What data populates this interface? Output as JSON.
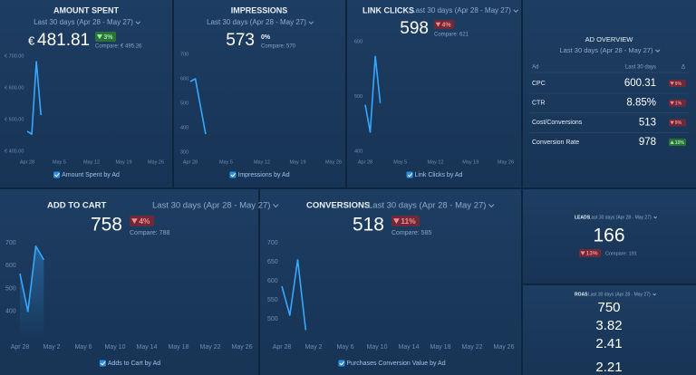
{
  "amount_spent": {
    "title": "AMOUNT SPENT",
    "period": "Last 30 days (Apr 28 - May 27)",
    "currency": "€",
    "value": "481.81",
    "delta": "3%",
    "compare": "Compare: € 495.26",
    "legend": "Amount Spent by Ad",
    "chart": {
      "type": "line",
      "color": "#35a8ff",
      "x": [
        0,
        1,
        2,
        3
      ],
      "values": [
        463,
        454,
        683,
        514
      ],
      "xlim": [
        0,
        28
      ],
      "ylim": [
        400,
        700
      ],
      "xticks": [
        {
          "value": 0,
          "label": "Apr 28"
        },
        {
          "value": 7,
          "label": "May 5"
        },
        {
          "value": 14,
          "label": "May 12"
        },
        {
          "value": 21,
          "label": "May 19"
        },
        {
          "value": 28,
          "label": "May 26"
        }
      ],
      "yticks": [
        {
          "value": 700,
          "label": "€ 700.00"
        },
        {
          "value": 600,
          "label": "€ 600.00"
        },
        {
          "value": 500,
          "label": "€ 500.00"
        },
        {
          "value": 400,
          "label": "€ 400.00"
        }
      ]
    }
  },
  "impressions": {
    "title": "IMPRESSIONS",
    "period": "Last 30 days (Apr 28 - May 27)",
    "value": "573",
    "delta": "0%",
    "compare": "Compare: 570",
    "legend": "Impressions by Ad",
    "chart": {
      "type": "line",
      "color": "#35a8ff",
      "x": [
        0,
        1,
        3
      ],
      "values": [
        589,
        600,
        374
      ],
      "xlim": [
        0,
        28
      ],
      "ylim": [
        300,
        700
      ],
      "xticks": [
        {
          "value": 0,
          "label": "Apr 28"
        },
        {
          "value": 7,
          "label": "May 5"
        },
        {
          "value": 14,
          "label": "May 12"
        },
        {
          "value": 21,
          "label": "May 19"
        },
        {
          "value": 28,
          "label": "May 26"
        }
      ],
      "yticks": [
        700,
        600,
        500,
        400,
        300
      ]
    }
  },
  "link_clicks": {
    "title": "LINK CLICKS",
    "period": "Last 30 days (Apr 28 - May 27)",
    "value": "598",
    "delta": "4%",
    "compare": "Compare: 621",
    "legend": "Link Clicks by Ad",
    "chart": {
      "type": "line",
      "color": "#35a8ff",
      "x": [
        0,
        1,
        2,
        3
      ],
      "values": [
        485,
        435,
        573,
        488
      ],
      "xlim": [
        0,
        28
      ],
      "ylim": [
        400,
        600
      ],
      "xticks": [
        {
          "value": 0,
          "label": "Apr 28"
        },
        {
          "value": 7,
          "label": "May 5"
        },
        {
          "value": 14,
          "label": "May 12"
        },
        {
          "value": 21,
          "label": "May 19"
        },
        {
          "value": 28,
          "label": "May 26"
        }
      ],
      "yticks": [
        600,
        500,
        400
      ]
    }
  },
  "ad_overview": {
    "title": "AD OVERVIEW",
    "period": "Last 30 days (Apr 28 - May 27)",
    "columns": [
      "Ad",
      "Last 30 days",
      "Δ"
    ],
    "rows": [
      [
        "CPC",
        "600.31",
        "9%"
      ],
      [
        "CTR",
        "8.85%",
        "1%"
      ],
      [
        "Cost/Conversions",
        "513",
        "9%"
      ],
      [
        "Conversion Rate",
        "978",
        "10%"
      ]
    ]
  },
  "add_to_cart": {
    "title": "ADD TO CART",
    "period": "Last 30 days (Apr 28 - May 27)",
    "value": "758",
    "delta": "4%",
    "compare": "Compare: 788",
    "legend": "Adds to Cart by Ad",
    "chart": {
      "type": "line",
      "area": true,
      "color": "#35a8ff",
      "x": [
        0,
        1,
        2,
        3
      ],
      "values": [
        565,
        400,
        685,
        625
      ],
      "xlim": [
        0,
        28
      ],
      "ylim": [
        300,
        700
      ],
      "xticks": [
        {
          "value": 0,
          "label": "Apr 28"
        },
        {
          "value": 4,
          "label": "May 2"
        },
        {
          "value": 8,
          "label": "May 6"
        },
        {
          "value": 12,
          "label": "May 10"
        },
        {
          "value": 16,
          "label": "May 14"
        },
        {
          "value": 20,
          "label": "May 18"
        },
        {
          "value": 24,
          "label": "May 22"
        },
        {
          "value": 28,
          "label": "May 26"
        }
      ],
      "yticks": [
        700,
        600,
        500,
        400
      ]
    }
  },
  "conversions": {
    "title": "CONVERSIONS",
    "period": "Last 30 days (Apr 28 - May 27)",
    "value": "518",
    "delta": "11%",
    "compare": "Compare: 585",
    "legend": "Purchases Conversion Value by Ad",
    "chart": {
      "type": "line",
      "color": "#35a8ff",
      "x": [
        0,
        1,
        2,
        3
      ],
      "values": [
        586,
        510,
        655,
        471
      ],
      "xlim": [
        0,
        28
      ],
      "ylim": [
        460,
        700
      ],
      "xticks": [
        {
          "value": 0,
          "label": "Apr 28"
        },
        {
          "value": 4,
          "label": "May 2"
        },
        {
          "value": 8,
          "label": "May 6"
        },
        {
          "value": 12,
          "label": "May 10"
        },
        {
          "value": 16,
          "label": "May 14"
        },
        {
          "value": 20,
          "label": "May 18"
        },
        {
          "value": 24,
          "label": "May 22"
        },
        {
          "value": 28,
          "label": "May 26"
        }
      ],
      "yticks": [
        700,
        650,
        600,
        550,
        500
      ]
    }
  },
  "leads": {
    "title": "LEADS",
    "period": "Last 30 days (Apr 28 - May 27)",
    "value": "166",
    "delta": "13%",
    "compare": "Compare: 191"
  },
  "roas": {
    "title": "ROAS",
    "period": "Last 30 days (Apr 28 - May 27)",
    "values": [
      "750",
      "3.82",
      "2.41",
      "2.21"
    ]
  }
}
